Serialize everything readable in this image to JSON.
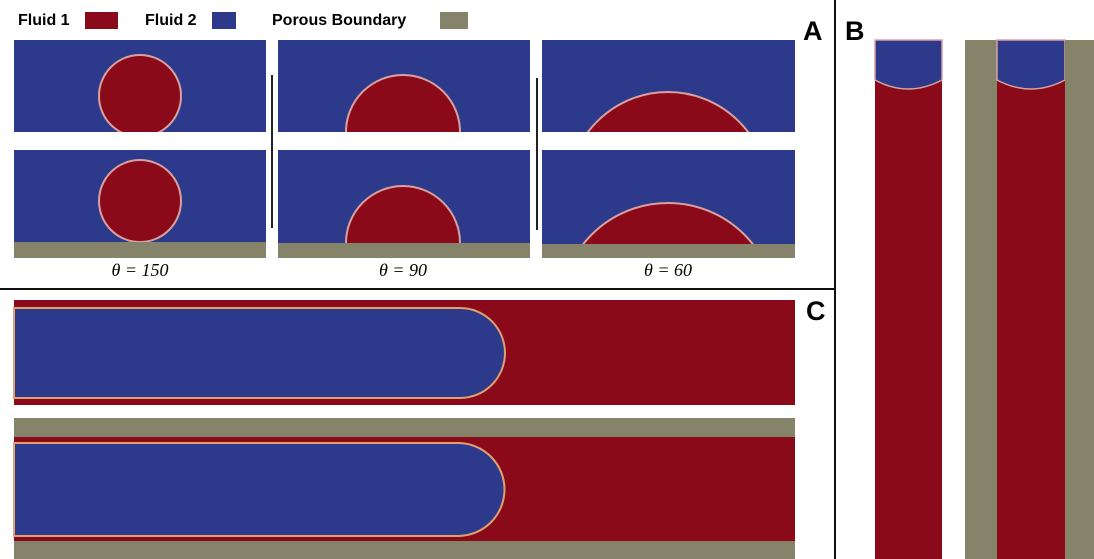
{
  "legend": [
    {
      "label": "Fluid 1"
    },
    {
      "label": "Fluid 2"
    },
    {
      "label": "Porous Boundary"
    }
  ],
  "panels": {
    "a": "A",
    "b": "B",
    "c": "C"
  },
  "angle_labels": [
    "θ = 150",
    "θ = 90",
    "θ = 60"
  ]
}
